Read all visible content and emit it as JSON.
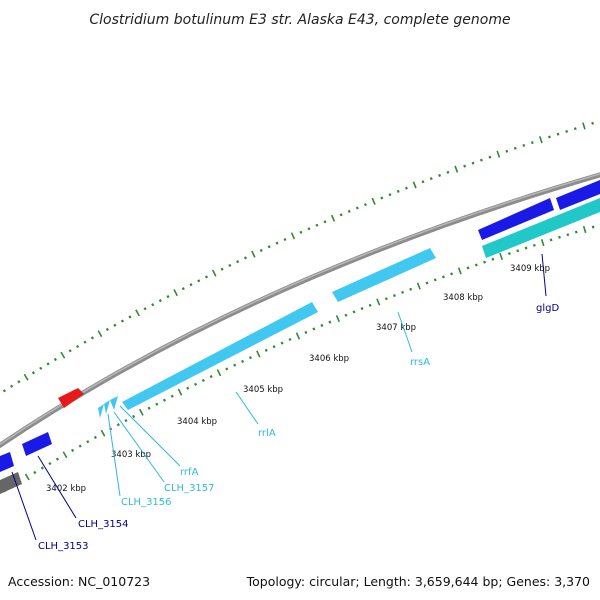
{
  "title": "Clostridium botulinum E3 str. Alaska E43, complete genome",
  "footer": {
    "accession": "Accession: NC_010723",
    "summary": "Topology: circular; Length: 3,659,644 bp; Genes: 3,370"
  },
  "colors": {
    "backbone": "#8c8c8c",
    "ruler_ticks": "#2e8b2e",
    "cds_blue": "#1a1ae6",
    "rna_light_blue": "#40c8f0",
    "cds_teal": "#20c8c8",
    "cds_red": "#e61a1a",
    "cds_gray": "#666666",
    "label_dark_blue": "#00008b",
    "label_light_blue": "#30b8e0"
  },
  "ruler": {
    "labels": [
      "3402 kbp",
      "3403 kbp",
      "3404 kbp",
      "3405 kbp",
      "3406 kbp",
      "3407 kbp",
      "3408 kbp",
      "3409 kbp"
    ]
  },
  "features": [
    {
      "name": "CLH_3153",
      "color": "label_dark_blue"
    },
    {
      "name": "CLH_3154",
      "color": "label_dark_blue"
    },
    {
      "name": "CLH_3156",
      "color": "label_light_blue"
    },
    {
      "name": "CLH_3157",
      "color": "label_light_blue"
    },
    {
      "name": "rrfA",
      "color": "label_light_blue"
    },
    {
      "name": "rrlA",
      "color": "label_light_blue"
    },
    {
      "name": "rrsA",
      "color": "label_light_blue"
    },
    {
      "name": "glgD",
      "color": "label_dark_blue"
    }
  ]
}
